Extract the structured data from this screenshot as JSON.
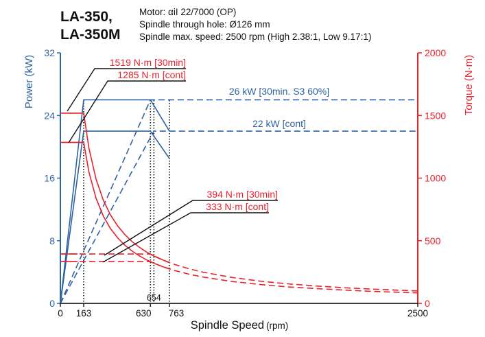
{
  "header": {
    "model_line1": "LA-350,",
    "model_line2": "LA-350M",
    "spec_motor": "Motor: αiI 22/7000 (OP)",
    "spec_hole": "Spindle through hole: Ø126 mm",
    "spec_speed": "Spindle max. speed: 2500 rpm (High 2.38:1, Low 9.17:1)"
  },
  "colors": {
    "power": "#2d62a3",
    "torque": "#e8212a",
    "axis": "#222222"
  },
  "chart_data": {
    "type": "line",
    "xlabel": "Spindle Speed",
    "xlabel_unit": "(rpm)",
    "ylabel_left": "Power (kW)",
    "ylabel_right": "Torque (N·m)",
    "xlim": [
      0,
      2500
    ],
    "ylim_left": [
      0,
      32
    ],
    "ylim_right": [
      0,
      2000
    ],
    "x_ticks": [
      "0",
      "163",
      "630",
      "763",
      "2500"
    ],
    "x_ticks_values": [
      0,
      163,
      630,
      763,
      2500
    ],
    "y_left_ticks": [
      0,
      8,
      16,
      24,
      32
    ],
    "y_right_ticks": [
      0,
      500,
      1000,
      1500,
      2000
    ],
    "vline_label": "654",
    "vlines": [
      163,
      630,
      654,
      763
    ],
    "series": [
      {
        "axis": "left",
        "style": "solid",
        "x": [
          0,
          163,
          630,
          763
        ],
        "y": [
          0,
          26,
          26,
          22
        ]
      },
      {
        "axis": "left",
        "style": "solid",
        "x": [
          0,
          163,
          630,
          763
        ],
        "y": [
          0,
          22,
          22,
          18.5
        ]
      },
      {
        "axis": "left",
        "style": "dashed",
        "x": [
          0,
          630,
          2500
        ],
        "y": [
          0,
          26,
          26
        ]
      },
      {
        "axis": "left",
        "style": "dashed",
        "x": [
          0,
          654,
          2500
        ],
        "y": [
          0,
          22,
          22
        ]
      },
      {
        "axis": "right",
        "style": "solid",
        "x": [
          0,
          163,
          200,
          250,
          300,
          350,
          400,
          450,
          500,
          550,
          600,
          650,
          700,
          763
        ],
        "y": [
          1519,
          1519,
          1237,
          990,
          825,
          707,
          619,
          550,
          495,
          450,
          412,
          380,
          354,
          325
        ]
      },
      {
        "axis": "right",
        "style": "solid",
        "x": [
          0,
          163,
          200,
          250,
          300,
          350,
          400,
          450,
          500,
          550,
          600,
          650,
          700,
          763
        ],
        "y": [
          1285,
          1285,
          1047,
          838,
          698,
          598,
          524,
          465,
          419,
          381,
          349,
          322,
          299,
          274
        ]
      },
      {
        "axis": "right",
        "style": "dashed",
        "x": [
          0,
          630,
          700,
          800,
          900,
          1000,
          1200,
          1400,
          1600,
          1800,
          2000,
          2200,
          2500
        ],
        "y": [
          394,
          394,
          355,
          310,
          276,
          248,
          207,
          177,
          155,
          138,
          124,
          113,
          99
        ]
      },
      {
        "axis": "right",
        "style": "dashed",
        "x": [
          0,
          630,
          700,
          800,
          900,
          1000,
          1200,
          1400,
          1600,
          1800,
          2000,
          2200,
          2500
        ],
        "y": [
          333,
          333,
          300,
          262,
          233,
          210,
          175,
          150,
          131,
          117,
          105,
          95,
          84
        ]
      }
    ],
    "annotations": [
      {
        "text": "26 kW [30min. S3 60%]",
        "color": "power"
      },
      {
        "text": "22 kW [cont]",
        "color": "power"
      },
      {
        "text": "1519 N·m [30min]",
        "color": "torque"
      },
      {
        "text": "1285 N·m [cont]",
        "color": "torque"
      },
      {
        "text": "394 N·m [30min]",
        "color": "torque"
      },
      {
        "text": "333 N·m [cont]",
        "color": "torque"
      }
    ]
  }
}
